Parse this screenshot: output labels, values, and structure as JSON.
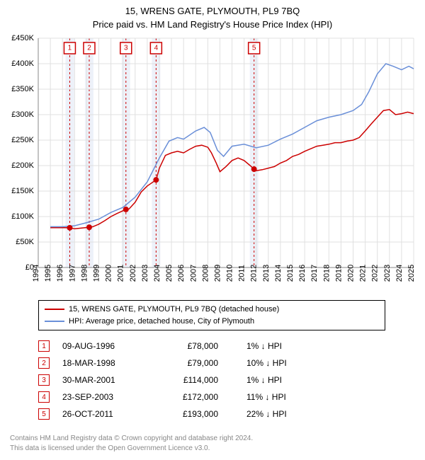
{
  "title": "15, WRENS GATE, PLYMOUTH, PL9 7BQ",
  "subtitle": "Price paid vs. HM Land Registry's House Price Index (HPI)",
  "chart": {
    "type": "line",
    "background_color": "#ffffff",
    "grid_color": "#e0e0e0",
    "axis_color": "#888888",
    "band_fill": "#e8eef7",
    "band_dash_color": "#cc0000",
    "marker_border": "#cc0000",
    "marker_fill": "#ffffff",
    "ylim": [
      0,
      450000
    ],
    "ytick_step": 50000,
    "yticks": [
      "£0",
      "£50K",
      "£100K",
      "£150K",
      "£200K",
      "£250K",
      "£300K",
      "£350K",
      "£400K",
      "£450K"
    ],
    "xlim": [
      1994,
      2025
    ],
    "xticks": [
      1994,
      1995,
      1996,
      1997,
      1998,
      1999,
      2000,
      2001,
      2002,
      2003,
      2004,
      2005,
      2006,
      2007,
      2008,
      2009,
      2010,
      2011,
      2012,
      2013,
      2014,
      2015,
      2016,
      2017,
      2018,
      2019,
      2020,
      2021,
      2022,
      2023,
      2024,
      2025
    ],
    "series": [
      {
        "name": "15, WRENS GATE, PLYMOUTH, PL9 7BQ (detached house)",
        "color": "#cc0000",
        "width": 1.5,
        "points": [
          [
            1995.0,
            78000
          ],
          [
            1996.6,
            78000
          ],
          [
            1997.0,
            76000
          ],
          [
            1998.21,
            79000
          ],
          [
            1998.5,
            80000
          ],
          [
            1999.0,
            85000
          ],
          [
            1999.5,
            92000
          ],
          [
            2000.0,
            100000
          ],
          [
            2000.5,
            106000
          ],
          [
            2001.24,
            114000
          ],
          [
            2001.5,
            115000
          ],
          [
            2002.0,
            128000
          ],
          [
            2002.5,
            148000
          ],
          [
            2003.0,
            160000
          ],
          [
            2003.73,
            172000
          ],
          [
            2004.0,
            195000
          ],
          [
            2004.5,
            220000
          ],
          [
            2005.0,
            225000
          ],
          [
            2005.5,
            228000
          ],
          [
            2006.0,
            225000
          ],
          [
            2006.5,
            232000
          ],
          [
            2007.0,
            238000
          ],
          [
            2007.5,
            240000
          ],
          [
            2008.0,
            236000
          ],
          [
            2008.3,
            225000
          ],
          [
            2008.7,
            205000
          ],
          [
            2009.0,
            188000
          ],
          [
            2009.5,
            198000
          ],
          [
            2010.0,
            210000
          ],
          [
            2010.5,
            215000
          ],
          [
            2011.0,
            210000
          ],
          [
            2011.5,
            200000
          ],
          [
            2011.82,
            193000
          ],
          [
            2012.0,
            190000
          ],
          [
            2012.5,
            192000
          ],
          [
            2013.0,
            195000
          ],
          [
            2013.5,
            198000
          ],
          [
            2014.0,
            205000
          ],
          [
            2014.5,
            210000
          ],
          [
            2015.0,
            218000
          ],
          [
            2015.5,
            222000
          ],
          [
            2016.0,
            228000
          ],
          [
            2016.5,
            233000
          ],
          [
            2017.0,
            238000
          ],
          [
            2017.5,
            240000
          ],
          [
            2018.0,
            242000
          ],
          [
            2018.5,
            245000
          ],
          [
            2019.0,
            245000
          ],
          [
            2019.5,
            248000
          ],
          [
            2020.0,
            250000
          ],
          [
            2020.5,
            255000
          ],
          [
            2021.0,
            268000
          ],
          [
            2021.5,
            282000
          ],
          [
            2022.0,
            295000
          ],
          [
            2022.5,
            308000
          ],
          [
            2023.0,
            310000
          ],
          [
            2023.5,
            300000
          ],
          [
            2024.0,
            302000
          ],
          [
            2024.5,
            305000
          ],
          [
            2025.0,
            302000
          ]
        ]
      },
      {
        "name": "HPI: Average price, detached house, City of Plymouth",
        "color": "#6a8fd8",
        "width": 1.5,
        "points": [
          [
            1995.0,
            80000
          ],
          [
            1996.0,
            80000
          ],
          [
            1997.0,
            82000
          ],
          [
            1998.0,
            88000
          ],
          [
            1999.0,
            95000
          ],
          [
            2000.0,
            108000
          ],
          [
            2001.0,
            118000
          ],
          [
            2002.0,
            138000
          ],
          [
            2003.0,
            168000
          ],
          [
            2004.0,
            215000
          ],
          [
            2004.8,
            248000
          ],
          [
            2005.5,
            255000
          ],
          [
            2006.0,
            252000
          ],
          [
            2007.0,
            268000
          ],
          [
            2007.7,
            275000
          ],
          [
            2008.2,
            265000
          ],
          [
            2008.8,
            230000
          ],
          [
            2009.3,
            218000
          ],
          [
            2010.0,
            238000
          ],
          [
            2011.0,
            242000
          ],
          [
            2012.0,
            235000
          ],
          [
            2013.0,
            240000
          ],
          [
            2014.0,
            252000
          ],
          [
            2015.0,
            262000
          ],
          [
            2016.0,
            275000
          ],
          [
            2017.0,
            288000
          ],
          [
            2018.0,
            295000
          ],
          [
            2019.0,
            300000
          ],
          [
            2020.0,
            308000
          ],
          [
            2020.7,
            320000
          ],
          [
            2021.3,
            345000
          ],
          [
            2022.0,
            380000
          ],
          [
            2022.7,
            400000
          ],
          [
            2023.3,
            395000
          ],
          [
            2024.0,
            388000
          ],
          [
            2024.6,
            395000
          ],
          [
            2025.0,
            390000
          ]
        ]
      }
    ],
    "sale_markers": [
      {
        "n": "1",
        "year": 1996.6,
        "price": 78000
      },
      {
        "n": "2",
        "year": 1998.21,
        "price": 79000
      },
      {
        "n": "3",
        "year": 2001.24,
        "price": 114000
      },
      {
        "n": "4",
        "year": 2003.73,
        "price": 172000
      },
      {
        "n": "5",
        "year": 2011.82,
        "price": 193000
      }
    ]
  },
  "legend": {
    "items": [
      {
        "label": "15, WRENS GATE, PLYMOUTH, PL9 7BQ (detached house)",
        "color": "#cc0000"
      },
      {
        "label": "HPI: Average price, detached house, City of Plymouth",
        "color": "#6a8fd8"
      }
    ]
  },
  "sales": [
    {
      "n": "1",
      "date": "09-AUG-1996",
      "price": "£78,000",
      "diff": "1% ↓ HPI"
    },
    {
      "n": "2",
      "date": "18-MAR-1998",
      "price": "£79,000",
      "diff": "10% ↓ HPI"
    },
    {
      "n": "3",
      "date": "30-MAR-2001",
      "price": "£114,000",
      "diff": "1% ↓ HPI"
    },
    {
      "n": "4",
      "date": "23-SEP-2003",
      "price": "£172,000",
      "diff": "11% ↓ HPI"
    },
    {
      "n": "5",
      "date": "26-OCT-2011",
      "price": "£193,000",
      "diff": "22% ↓ HPI"
    }
  ],
  "footer": {
    "line1": "Contains HM Land Registry data © Crown copyright and database right 2024.",
    "line2": "This data is licensed under the Open Government Licence v3.0."
  }
}
